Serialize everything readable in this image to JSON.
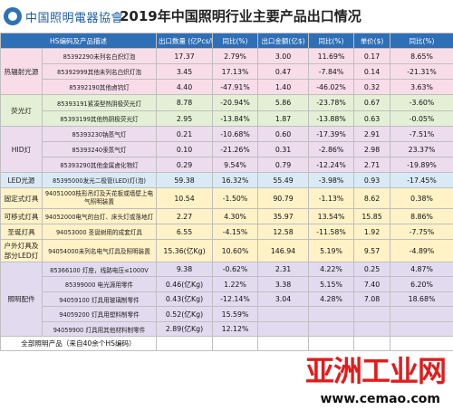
{
  "logo": {
    "text": "中国照明電器協會"
  },
  "title": "2019年中国照明行业主要产品出口情况",
  "columns": [
    "HS编码及产品描述",
    "出口数量 (亿Pcs/Kg)",
    "同比(%)",
    "出口金额(亿$)",
    "同比(%)",
    "单价($)",
    "同比(%)"
  ],
  "groups": [
    {
      "label": "热辐射光源",
      "color": "pink",
      "rows": [
        {
          "product": "85392290未列名白炽灯泡",
          "qty": "17.37",
          "qty_yoy": "2.79%",
          "amt": "3.00",
          "amt_yoy": "11.69%",
          "price": "0.17",
          "price_yoy": "8.65%"
        },
        {
          "product": "85392999其他未列名白炽灯泡",
          "qty": "3.45",
          "qty_yoy": "17.13%",
          "amt": "0.47",
          "amt_yoy": "-7.84%",
          "price": "0.14",
          "price_yoy": "-21.31%"
        },
        {
          "product": "85392190其他卤钨灯",
          "qty": "4.40",
          "qty_yoy": "-47.91%",
          "amt": "1.40",
          "amt_yoy": "-46.02%",
          "price": "0.32",
          "price_yoy": "3.63%"
        }
      ]
    },
    {
      "label": "荧光灯",
      "color": "green",
      "rows": [
        {
          "product": "85393191紧凑型热阴极荧光灯",
          "qty": "8.78",
          "qty_yoy": "-20.94%",
          "amt": "5.86",
          "amt_yoy": "-23.78%",
          "price": "0.67",
          "price_yoy": "-3.60%"
        },
        {
          "product": "85393199其他热阴极荧光灯",
          "qty": "2.95",
          "qty_yoy": "-13.84%",
          "amt": "1.87",
          "amt_yoy": "-13.88%",
          "price": "0.63",
          "price_yoy": "-0.05%"
        }
      ]
    },
    {
      "label": "HID灯",
      "color": "purple",
      "rows": [
        {
          "product": "85393230钠蒸气灯",
          "qty": "0.21",
          "qty_yoy": "-10.68%",
          "amt": "0.60",
          "amt_yoy": "-17.39%",
          "price": "2.91",
          "price_yoy": "-7.51%"
        },
        {
          "product": "85393240汞蒸气灯",
          "qty": "0.10",
          "qty_yoy": "-21.26%",
          "amt": "0.31",
          "amt_yoy": "-2.86%",
          "price": "2.98",
          "price_yoy": "23.37%"
        },
        {
          "product": "85393290其他金属卤化物灯",
          "qty": "0.29",
          "qty_yoy": "9.54%",
          "amt": "0.79",
          "amt_yoy": "-12.24%",
          "price": "2.71",
          "price_yoy": "-19.89%"
        }
      ]
    },
    {
      "label": "LED光源",
      "color": "blue",
      "rows": [
        {
          "product": "85395000发光二极管(LED)灯(泡)",
          "qty": "59.38",
          "qty_yoy": "16.32%",
          "amt": "55.49",
          "amt_yoy": "-3.98%",
          "price": "0.93",
          "price_yoy": "-17.45%"
        }
      ]
    },
    {
      "label": "固定式灯具",
      "color": "yellow",
      "rows": [
        {
          "product": "94051000枝形吊灯及天花板或墙壁上电气照明装置",
          "qty": "10.54",
          "qty_yoy": "-1.50%",
          "amt": "90.79",
          "amt_yoy": "-1.13%",
          "price": "8.62",
          "price_yoy": "0.38%"
        }
      ]
    },
    {
      "label": "可移式灯具",
      "color": "yellow",
      "rows": [
        {
          "product": "94052000电气的台灯、床头灯或落地灯",
          "qty": "2.27",
          "qty_yoy": "4.30%",
          "amt": "35.97",
          "amt_yoy": "13.54%",
          "price": "15.85",
          "price_yoy": "8.86%"
        }
      ]
    },
    {
      "label": "圣诞灯具",
      "color": "yellow",
      "rows": [
        {
          "product": "94053000 圣诞树用的成套灯具",
          "qty": "6.55",
          "qty_yoy": "-4.15%",
          "amt": "12.58",
          "amt_yoy": "-11.58%",
          "price": "1.92",
          "price_yoy": "-7.75%"
        }
      ]
    },
    {
      "label": "户外灯具及部分LED灯",
      "color": "yellow",
      "rows": [
        {
          "product": "94054000未列名电气灯具及照明装置",
          "qty": "15.36(亿Kg)",
          "qty_yoy": "10.60%",
          "amt": "146.94",
          "amt_yoy": "5.19%",
          "price": "9.57",
          "price_yoy": "-4.89%"
        }
      ]
    },
    {
      "label": "照明配件",
      "color": "lav",
      "rows": [
        {
          "product": "85366100 灯座，线路电压≤1000V",
          "qty": "9.38",
          "qty_yoy": "-0.62%",
          "amt": "2.31",
          "amt_yoy": "4.22%",
          "price": "0.25",
          "price_yoy": "4.87%"
        },
        {
          "product": "85399000 电光源用零件",
          "qty": "0.46(亿Kg)",
          "qty_yoy": "1.22%",
          "amt": "3.38",
          "amt_yoy": "5.15%",
          "price": "7.40",
          "price_yoy": "6.20%"
        },
        {
          "product": "94059100 灯具用玻璃制零件",
          "qty": "0.43(亿Kg)",
          "qty_yoy": "-12.14%",
          "amt": "3.04",
          "amt_yoy": "4.28%",
          "price": "7.08",
          "price_yoy": "18.68%"
        },
        {
          "product": "94059200 灯具用塑料制零件",
          "qty": "0.52(亿Kg)",
          "qty_yoy": "15.59%",
          "amt": "",
          "amt_yoy": "",
          "price": "",
          "price_yoy": ""
        },
        {
          "product": "94059900 灯具用其他材料制零件",
          "qty": "2.89(亿Kg)",
          "qty_yoy": "12.12%",
          "amt": "",
          "amt_yoy": "",
          "price": "",
          "price_yoy": ""
        }
      ]
    }
  ],
  "total": {
    "label": "全部照明产品（来自40余个HS编码）",
    "qty": "",
    "qty_yoy": "",
    "amt": "",
    "amt_yoy": "",
    "price": "",
    "price_yoy": ""
  },
  "watermark": {
    "text": "亚洲工业网",
    "url": "www.cemao.com"
  },
  "colors": {
    "header": "#2f6fb6",
    "pink": "#f8dde9",
    "green": "#e4f0d6",
    "purple": "#ecdcee",
    "blue": "#d9eaf6",
    "yellow": "#fff2c7",
    "lav": "#e2dbf0",
    "watermark": "#e21c1c"
  }
}
